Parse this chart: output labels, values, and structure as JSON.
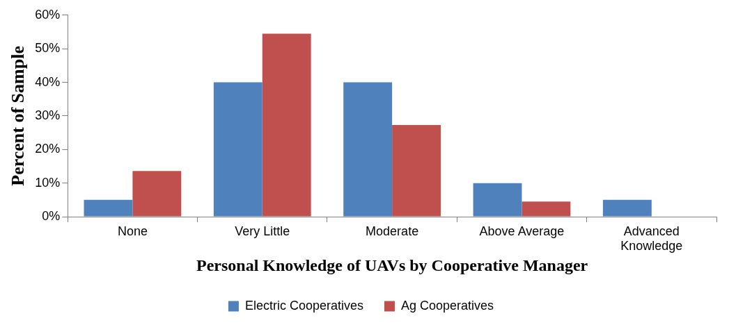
{
  "chart_data": {
    "type": "bar",
    "xlabel": "Personal Knowledge of UAVs by Cooperative Manager",
    "ylabel": "Percent of Sample",
    "categories": [
      "None",
      "Very Little",
      "Moderate",
      "Above Average",
      "Advanced Knowledge"
    ],
    "series": [
      {
        "name": "Electric Cooperatives",
        "color": "#4f81bd",
        "values": [
          5,
          40,
          40,
          10,
          5
        ]
      },
      {
        "name": "Ag Cooperatives",
        "color": "#c0504d",
        "values": [
          13.6,
          54.5,
          27.3,
          4.5,
          0
        ]
      }
    ],
    "ylim": [
      0,
      60
    ],
    "yticks": [
      {
        "value": 0,
        "label": "0%"
      },
      {
        "value": 10,
        "label": "10%"
      },
      {
        "value": 20,
        "label": "20%"
      },
      {
        "value": 30,
        "label": "30%"
      },
      {
        "value": 40,
        "label": "40%"
      },
      {
        "value": 50,
        "label": "50%"
      },
      {
        "value": 60,
        "label": "60%"
      }
    ],
    "grid": false,
    "legend": "bottom"
  }
}
